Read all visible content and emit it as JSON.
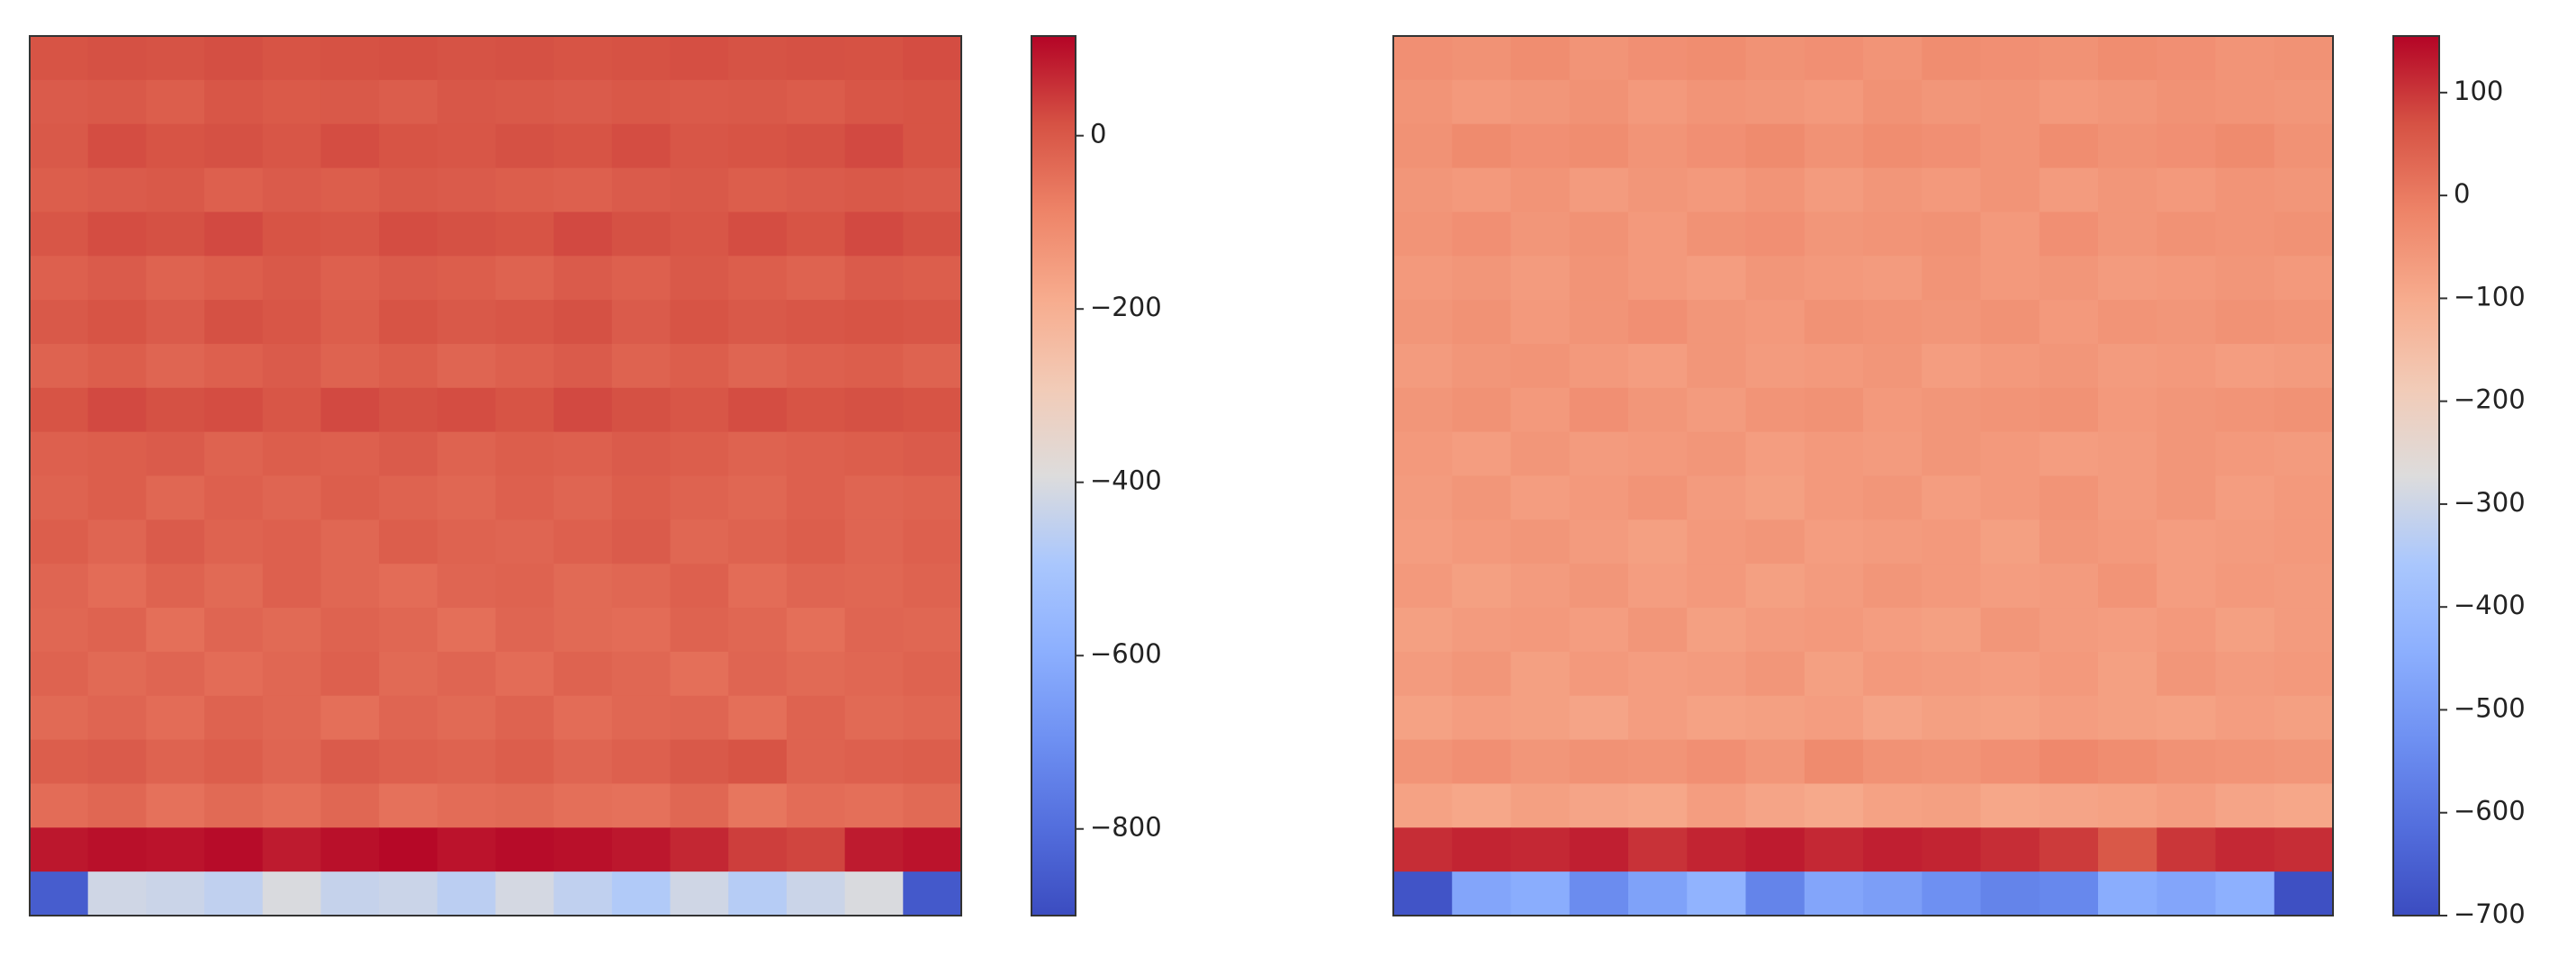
{
  "chart_data": [
    {
      "type": "heatmap",
      "colormap": "coolwarm",
      "clim": [
        -900,
        115
      ],
      "cticks": [
        {
          "value": -800,
          "label": "−800"
        },
        {
          "value": -600,
          "label": "−600"
        },
        {
          "value": -400,
          "label": "−400"
        },
        {
          "value": -200,
          "label": "−200"
        },
        0
      ],
      "z": [
        [
          10,
          15,
          12,
          18,
          10,
          14,
          16,
          12,
          15,
          10,
          13,
          17,
          12,
          15,
          14,
          20
        ],
        [
          -5,
          0,
          -10,
          5,
          -2,
          0,
          -8,
          3,
          0,
          -5,
          2,
          -3,
          0,
          -6,
          5,
          10
        ],
        [
          0,
          20,
          10,
          15,
          5,
          20,
          10,
          5,
          15,
          10,
          20,
          5,
          10,
          15,
          25,
          10
        ],
        [
          -10,
          -5,
          0,
          -15,
          -5,
          -10,
          0,
          -5,
          -10,
          -15,
          -5,
          0,
          -10,
          -5,
          0,
          -5
        ],
        [
          5,
          20,
          15,
          25,
          10,
          5,
          20,
          15,
          10,
          25,
          15,
          5,
          20,
          10,
          25,
          15
        ],
        [
          -15,
          -5,
          -20,
          -10,
          0,
          -15,
          -5,
          -10,
          -20,
          -5,
          -15,
          0,
          -10,
          -20,
          -5,
          -10
        ],
        [
          0,
          10,
          -5,
          15,
          5,
          -10,
          10,
          0,
          5,
          15,
          -5,
          10,
          0,
          5,
          10,
          5
        ],
        [
          -20,
          -10,
          -25,
          -15,
          -5,
          -20,
          -10,
          -25,
          -15,
          -5,
          -20,
          -10,
          -25,
          -15,
          -10,
          -20
        ],
        [
          10,
          25,
          15,
          20,
          5,
          25,
          15,
          20,
          10,
          25,
          15,
          5,
          20,
          10,
          15,
          10
        ],
        [
          -15,
          -10,
          -5,
          -20,
          -10,
          -15,
          -5,
          -20,
          -10,
          -15,
          -5,
          -10,
          -20,
          -15,
          -10,
          -5
        ],
        [
          -20,
          -10,
          -30,
          -15,
          -25,
          -10,
          -20,
          -30,
          -15,
          -25,
          -10,
          -20,
          -30,
          -15,
          -25,
          -20
        ],
        [
          -10,
          -25,
          -5,
          -20,
          -15,
          -30,
          -10,
          -20,
          -25,
          -15,
          -5,
          -30,
          -20,
          -10,
          -25,
          -15
        ],
        [
          -25,
          -40,
          -20,
          -35,
          -15,
          -30,
          -40,
          -25,
          -20,
          -35,
          -30,
          -15,
          -40,
          -25,
          -30,
          -20
        ],
        [
          -30,
          -20,
          -45,
          -25,
          -35,
          -20,
          -30,
          -45,
          -25,
          -35,
          -40,
          -20,
          -30,
          -45,
          -25,
          -30
        ],
        [
          -20,
          -35,
          -25,
          -40,
          -30,
          -15,
          -35,
          -25,
          -40,
          -20,
          -30,
          -45,
          -25,
          -35,
          -30,
          -20
        ],
        [
          -35,
          -25,
          -40,
          -20,
          -30,
          -45,
          -25,
          -35,
          -20,
          -40,
          -30,
          -25,
          -45,
          -20,
          -35,
          -30
        ],
        [
          -10,
          -5,
          -20,
          -10,
          -25,
          -5,
          -15,
          -20,
          -10,
          -25,
          -15,
          0,
          10,
          -20,
          -15,
          -10
        ],
        [
          -40,
          -30,
          -50,
          -35,
          -45,
          -30,
          -50,
          -40,
          -35,
          -45,
          -50,
          -30,
          -60,
          -40,
          -45,
          -35
        ],
        [
          90,
          100,
          95,
          105,
          85,
          100,
          110,
          95,
          105,
          100,
          90,
          70,
          40,
          30,
          85,
          95
        ],
        [
          -850,
          -420,
          -430,
          -450,
          -400,
          -440,
          -430,
          -460,
          -410,
          -450,
          -480,
          -420,
          -470,
          -430,
          -400,
          -860
        ]
      ]
    },
    {
      "type": "heatmap",
      "colormap": "coolwarm",
      "clim": [
        -700,
        155
      ],
      "cticks": [
        {
          "value": -700,
          "label": "−700"
        },
        {
          "value": -600,
          "label": "−600"
        },
        {
          "value": -500,
          "label": "−500"
        },
        {
          "value": -400,
          "label": "−400"
        },
        {
          "value": -300,
          "label": "−300"
        },
        {
          "value": -200,
          "label": "−200"
        },
        {
          "value": -100,
          "label": "−100"
        },
        0,
        100
      ],
      "z": [
        [
          -40,
          -45,
          -35,
          -50,
          -40,
          -35,
          -45,
          -40,
          -50,
          -35,
          -40,
          -45,
          -35,
          -40,
          -50,
          -45
        ],
        [
          -50,
          -60,
          -55,
          -45,
          -60,
          -50,
          -55,
          -60,
          -45,
          -55,
          -50,
          -60,
          -55,
          -45,
          -50,
          -55
        ],
        [
          -45,
          -30,
          -40,
          -35,
          -50,
          -40,
          -30,
          -45,
          -35,
          -40,
          -50,
          -35,
          -45,
          -40,
          -30,
          -45
        ],
        [
          -55,
          -60,
          -50,
          -65,
          -55,
          -60,
          -50,
          -65,
          -55,
          -60,
          -50,
          -65,
          -55,
          -60,
          -50,
          -55
        ],
        [
          -50,
          -40,
          -55,
          -45,
          -60,
          -45,
          -40,
          -55,
          -50,
          -45,
          -60,
          -40,
          -55,
          -45,
          -50,
          -45
        ],
        [
          -60,
          -55,
          -65,
          -50,
          -60,
          -70,
          -55,
          -60,
          -65,
          -50,
          -60,
          -55,
          -65,
          -60,
          -55,
          -60
        ],
        [
          -55,
          -45,
          -60,
          -50,
          -40,
          -55,
          -60,
          -45,
          -50,
          -55,
          -45,
          -60,
          -50,
          -55,
          -45,
          -50
        ],
        [
          -65,
          -55,
          -50,
          -60,
          -70,
          -55,
          -65,
          -60,
          -55,
          -70,
          -60,
          -55,
          -65,
          -60,
          -70,
          -65
        ],
        [
          -55,
          -45,
          -60,
          -40,
          -55,
          -65,
          -50,
          -45,
          -60,
          -55,
          -50,
          -45,
          -60,
          -55,
          -50,
          -45
        ],
        [
          -60,
          -70,
          -55,
          -65,
          -60,
          -55,
          -70,
          -60,
          -65,
          -55,
          -60,
          -70,
          -65,
          -55,
          -60,
          -65
        ],
        [
          -65,
          -55,
          -70,
          -60,
          -50,
          -65,
          -75,
          -60,
          -55,
          -70,
          -60,
          -50,
          -65,
          -55,
          -70,
          -60
        ],
        [
          -70,
          -60,
          -55,
          -65,
          -75,
          -60,
          -55,
          -70,
          -65,
          -60,
          -75,
          -55,
          -60,
          -70,
          -65,
          -60
        ],
        [
          -60,
          -75,
          -65,
          -55,
          -70,
          -60,
          -75,
          -65,
          -55,
          -60,
          -70,
          -65,
          -50,
          -70,
          -60,
          -65
        ],
        [
          -75,
          -65,
          -60,
          -70,
          -55,
          -75,
          -65,
          -60,
          -70,
          -75,
          -55,
          -65,
          -70,
          -60,
          -75,
          -65
        ],
        [
          -65,
          -55,
          -75,
          -60,
          -70,
          -65,
          -55,
          -75,
          -60,
          -65,
          -70,
          -60,
          -75,
          -55,
          -65,
          -60
        ],
        [
          -80,
          -70,
          -75,
          -85,
          -70,
          -80,
          -75,
          -70,
          -85,
          -75,
          -80,
          -70,
          -75,
          -80,
          -70,
          -75
        ],
        [
          -50,
          -40,
          -55,
          -45,
          -50,
          -40,
          -55,
          -30,
          -45,
          -50,
          -40,
          -25,
          -35,
          -45,
          -50,
          -55
        ],
        [
          -80,
          -90,
          -75,
          -85,
          -90,
          -70,
          -85,
          -95,
          -80,
          -75,
          -90,
          -85,
          -80,
          -70,
          -85,
          -90
        ],
        [
          110,
          120,
          115,
          125,
          105,
          120,
          130,
          115,
          125,
          120,
          110,
          95,
          60,
          100,
          115,
          110
        ],
        [
          -680,
          -470,
          -450,
          -540,
          -480,
          -430,
          -560,
          -470,
          -490,
          -530,
          -560,
          -550,
          -450,
          -470,
          -440,
          -690
        ]
      ]
    }
  ]
}
